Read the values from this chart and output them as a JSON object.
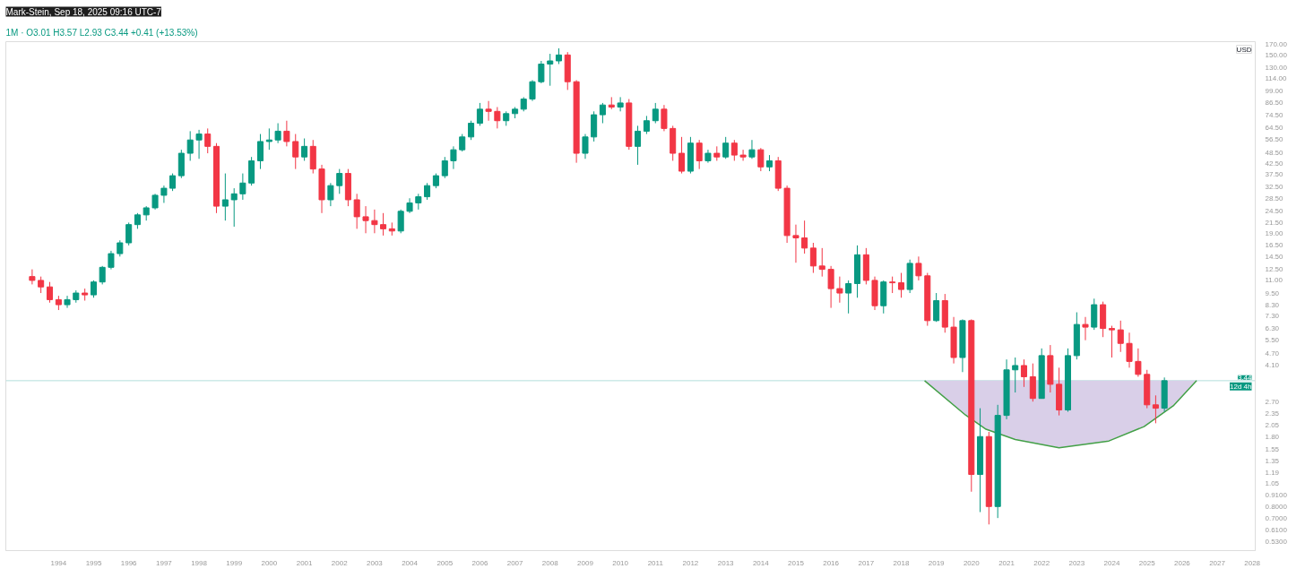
{
  "chart_data": {
    "type": "candlestick",
    "title": "Mark-Stein, Sep 18, 2025 09:16 UTC-7",
    "subtitle": "1M · O3.01 H3.57 L2.93 C3.44 +0.41 (+13.53%)",
    "ylabel": "USD",
    "x": [
      "1993-04",
      "1993-07",
      "1993-10",
      "1994-01",
      "1994-04",
      "1994-07",
      "1994-10",
      "1995-01",
      "1995-04",
      "1995-07",
      "1995-10",
      "1996-01",
      "1996-04",
      "1996-07",
      "1996-10",
      "1997-01",
      "1997-04",
      "1997-07",
      "1997-10",
      "1998-01",
      "1998-04",
      "1998-07",
      "1998-10",
      "1999-01",
      "1999-04",
      "1999-07",
      "1999-10",
      "2000-01",
      "2000-04",
      "2000-07",
      "2000-10",
      "2001-01",
      "2001-04",
      "2001-07",
      "2001-10",
      "2002-01",
      "2002-04",
      "2002-07",
      "2002-10",
      "2003-01",
      "2003-04",
      "2003-07",
      "2003-10",
      "2004-01",
      "2004-04",
      "2004-07",
      "2004-10",
      "2005-01",
      "2005-04",
      "2005-07",
      "2005-10",
      "2006-01",
      "2006-04",
      "2006-07",
      "2006-10",
      "2007-01",
      "2007-04",
      "2007-07",
      "2007-10",
      "2008-01",
      "2008-04",
      "2008-07",
      "2008-10",
      "2009-01",
      "2009-04",
      "2009-07",
      "2009-10",
      "2010-01",
      "2010-04",
      "2010-07",
      "2010-10",
      "2011-01",
      "2011-04",
      "2011-07",
      "2011-10",
      "2012-01",
      "2012-04",
      "2012-07",
      "2012-10",
      "2013-01",
      "2013-04",
      "2013-07",
      "2013-10",
      "2014-01",
      "2014-04",
      "2014-07",
      "2014-10",
      "2015-01",
      "2015-04",
      "2015-07",
      "2015-10",
      "2016-01",
      "2016-04",
      "2016-07",
      "2016-10",
      "2017-01",
      "2017-04",
      "2017-07",
      "2017-10",
      "2018-01",
      "2018-04",
      "2018-07",
      "2018-10",
      "2019-01",
      "2019-04",
      "2019-07",
      "2019-10",
      "2020-01",
      "2020-04",
      "2020-07",
      "2020-10",
      "2021-01",
      "2021-04",
      "2021-07",
      "2021-10",
      "2022-01",
      "2022-04",
      "2022-07",
      "2022-10",
      "2023-01",
      "2023-04",
      "2023-07",
      "2023-10",
      "2024-01",
      "2024-04",
      "2024-07",
      "2024-10",
      "2025-01",
      "2025-04",
      "2025-07"
    ],
    "ohlc": [
      [
        11.5,
        12.5,
        10.5,
        11.0
      ],
      [
        11.0,
        11.5,
        9.5,
        10.2
      ],
      [
        10.2,
        10.8,
        8.5,
        8.8
      ],
      [
        8.8,
        9.2,
        7.8,
        8.3
      ],
      [
        8.3,
        9.2,
        8.0,
        8.8
      ],
      [
        8.8,
        9.8,
        8.5,
        9.5
      ],
      [
        9.5,
        10.0,
        8.7,
        9.3
      ],
      [
        9.3,
        11.0,
        9.0,
        10.8
      ],
      [
        10.8,
        13.0,
        10.5,
        12.8
      ],
      [
        12.8,
        15.5,
        12.5,
        15.0
      ],
      [
        15.0,
        17.5,
        14.5,
        17.0
      ],
      [
        17.0,
        21.5,
        16.5,
        21.0
      ],
      [
        21.0,
        24.0,
        20.0,
        23.5
      ],
      [
        23.5,
        26.0,
        22.0,
        25.5
      ],
      [
        25.5,
        30.0,
        25.0,
        29.5
      ],
      [
        29.5,
        33.0,
        27.0,
        32.0
      ],
      [
        32.0,
        38.0,
        31.0,
        37.0
      ],
      [
        37.0,
        50.0,
        36.0,
        48.0
      ],
      [
        48.0,
        62.0,
        44.0,
        56.0
      ],
      [
        56.0,
        63.0,
        45.0,
        60.0
      ],
      [
        60.0,
        64.0,
        48.0,
        52.0
      ],
      [
        52.0,
        54.0,
        24.0,
        26.0
      ],
      [
        26.0,
        38.0,
        22.0,
        28.0
      ],
      [
        28.0,
        32.0,
        20.5,
        30.0
      ],
      [
        30.0,
        38.0,
        28.0,
        34.0
      ],
      [
        34.0,
        46.0,
        33.0,
        44.0
      ],
      [
        44.0,
        60.0,
        40.0,
        55.0
      ],
      [
        55.0,
        64.0,
        50.0,
        56.0
      ],
      [
        56.0,
        68.0,
        54.0,
        62.0
      ],
      [
        62.0,
        70.0,
        52.0,
        55.0
      ],
      [
        55.0,
        60.0,
        40.0,
        46.0
      ],
      [
        46.0,
        57.0,
        44.0,
        52.0
      ],
      [
        52.0,
        56.0,
        38.0,
        40.0
      ],
      [
        40.0,
        42.0,
        24.0,
        28.0
      ],
      [
        28.0,
        34.0,
        26.0,
        33.0
      ],
      [
        33.0,
        40.0,
        30.0,
        38.0
      ],
      [
        38.0,
        40.0,
        26.0,
        28.0
      ],
      [
        28.0,
        30.0,
        20.0,
        23.0
      ],
      [
        23.0,
        26.0,
        19.0,
        22.0
      ],
      [
        22.0,
        25.0,
        19.0,
        21.0
      ],
      [
        21.0,
        24.0,
        18.5,
        20.0
      ],
      [
        20.0,
        21.5,
        18.5,
        19.5
      ],
      [
        19.5,
        25.0,
        19.0,
        24.5
      ],
      [
        24.5,
        28.5,
        24.0,
        27.0
      ],
      [
        27.0,
        30.0,
        25.0,
        29.0
      ],
      [
        29.0,
        34.0,
        28.0,
        33.0
      ],
      [
        33.0,
        38.0,
        32.0,
        37.0
      ],
      [
        37.0,
        46.0,
        36.0,
        44.0
      ],
      [
        44.0,
        52.0,
        40.0,
        50.0
      ],
      [
        50.0,
        60.0,
        49.0,
        58.0
      ],
      [
        58.0,
        70.0,
        56.0,
        68.0
      ],
      [
        68.0,
        86.0,
        66.0,
        80.0
      ],
      [
        80.0,
        88.0,
        70.0,
        78.0
      ],
      [
        78.0,
        82.0,
        64.0,
        70.0
      ],
      [
        70.0,
        78.0,
        66.0,
        76.0
      ],
      [
        76.0,
        82.0,
        72.0,
        80.0
      ],
      [
        80.0,
        92.0,
        78.0,
        90.0
      ],
      [
        90.0,
        112.0,
        88.0,
        110.0
      ],
      [
        110.0,
        140.0,
        108.0,
        135.0
      ],
      [
        135.0,
        152.0,
        105.0,
        140.0
      ],
      [
        140.0,
        162.0,
        135.0,
        150.0
      ],
      [
        150.0,
        155.0,
        100.0,
        110.0
      ],
      [
        110.0,
        112.0,
        43.0,
        48.0
      ],
      [
        48.0,
        60.0,
        45.0,
        58.0
      ],
      [
        58.0,
        78.0,
        55.0,
        75.0
      ],
      [
        75.0,
        86.0,
        68.0,
        84.0
      ],
      [
        84.0,
        92.0,
        80.0,
        82.0
      ],
      [
        82.0,
        92.0,
        78.0,
        86.0
      ],
      [
        86.0,
        90.0,
        50.0,
        52.0
      ],
      [
        52.0,
        66.0,
        42.0,
        62.0
      ],
      [
        62.0,
        74.0,
        60.0,
        70.0
      ],
      [
        70.0,
        86.0,
        68.0,
        80.0
      ],
      [
        80.0,
        84.0,
        62.0,
        64.0
      ],
      [
        64.0,
        66.0,
        44.0,
        48.0
      ],
      [
        48.0,
        58.0,
        38.0,
        39.0
      ],
      [
        39.0,
        58.0,
        38.0,
        54.0
      ],
      [
        54.0,
        56.0,
        40.0,
        44.0
      ],
      [
        44.0,
        50.0,
        43.0,
        48.0
      ],
      [
        48.0,
        52.0,
        44.0,
        46.0
      ],
      [
        46.0,
        58.0,
        45.0,
        54.0
      ],
      [
        54.0,
        56.0,
        44.0,
        47.0
      ],
      [
        47.0,
        50.0,
        44.0,
        46.0
      ],
      [
        46.0,
        56.0,
        45.0,
        50.0
      ],
      [
        50.0,
        51.0,
        39.0,
        41.0
      ],
      [
        41.0,
        47.0,
        39.0,
        44.0
      ],
      [
        44.0,
        46.0,
        31.0,
        32.0
      ],
      [
        32.0,
        33.0,
        17.0,
        18.5
      ],
      [
        18.5,
        21.0,
        13.5,
        18.0
      ],
      [
        18.0,
        22.0,
        15.0,
        16.0
      ],
      [
        16.0,
        17.0,
        12.0,
        13.0
      ],
      [
        13.0,
        16.0,
        11.5,
        12.5
      ],
      [
        12.5,
        13.0,
        8.0,
        10.0
      ],
      [
        10.0,
        11.5,
        8.5,
        9.5
      ],
      [
        9.5,
        11.0,
        7.5,
        10.6
      ],
      [
        10.6,
        16.5,
        9.0,
        14.8
      ],
      [
        14.8,
        16.0,
        10.5,
        11.0
      ],
      [
        11.0,
        11.5,
        7.8,
        8.2
      ],
      [
        8.2,
        11.0,
        7.5,
        10.8
      ],
      [
        10.8,
        11.5,
        9.5,
        10.7
      ],
      [
        10.7,
        12.0,
        9.0,
        9.9
      ],
      [
        9.9,
        14.0,
        9.5,
        13.4
      ],
      [
        13.4,
        14.5,
        11.0,
        11.6
      ],
      [
        11.6,
        12.0,
        6.5,
        6.9
      ],
      [
        6.9,
        9.5,
        6.8,
        8.7
      ],
      [
        8.7,
        9.4,
        6.0,
        6.4
      ],
      [
        6.4,
        7.2,
        4.2,
        4.5
      ],
      [
        4.5,
        7.0,
        3.8,
        6.9
      ],
      [
        6.9,
        7.0,
        0.95,
        1.16
      ],
      [
        1.16,
        2.5,
        0.75,
        1.8
      ],
      [
        1.8,
        1.9,
        0.65,
        0.8
      ],
      [
        0.8,
        2.6,
        0.7,
        2.3
      ],
      [
        2.3,
        4.4,
        2.2,
        3.9
      ],
      [
        3.9,
        4.5,
        3.0,
        4.1
      ],
      [
        4.1,
        4.4,
        3.2,
        3.6
      ],
      [
        3.6,
        4.2,
        2.7,
        2.8
      ],
      [
        2.8,
        5.0,
        2.8,
        4.6
      ],
      [
        4.6,
        5.2,
        3.0,
        3.3
      ],
      [
        3.3,
        4.0,
        2.3,
        2.45
      ],
      [
        2.45,
        5.0,
        2.4,
        4.6
      ],
      [
        4.6,
        7.6,
        4.4,
        6.6
      ],
      [
        6.6,
        7.2,
        5.5,
        6.4
      ],
      [
        6.4,
        8.9,
        6.2,
        8.3
      ],
      [
        8.3,
        8.6,
        5.7,
        6.3
      ],
      [
        6.3,
        6.5,
        4.5,
        6.2
      ],
      [
        6.2,
        6.9,
        4.8,
        5.3
      ],
      [
        5.3,
        6.0,
        4.0,
        4.3
      ],
      [
        4.3,
        5.0,
        3.6,
        3.7
      ],
      [
        3.7,
        3.9,
        2.5,
        2.6
      ],
      [
        2.6,
        2.9,
        2.1,
        2.5
      ],
      [
        2.5,
        3.57,
        2.4,
        3.44
      ]
    ],
    "colors": [
      "#f23645",
      "#f23645",
      "#f23645",
      "#f23645",
      "#089981",
      "#089981",
      "#f23645",
      "#089981",
      "#089981",
      "#089981",
      "#089981",
      "#089981",
      "#089981",
      "#089981",
      "#089981",
      "#089981",
      "#089981",
      "#089981",
      "#089981",
      "#089981",
      "#f23645",
      "#f23645",
      "#089981",
      "#089981",
      "#089981",
      "#089981",
      "#089981",
      "#089981",
      "#089981",
      "#f23645",
      "#f23645",
      "#089981",
      "#f23645",
      "#f23645",
      "#089981",
      "#089981",
      "#f23645",
      "#f23645",
      "#f23645",
      "#f23645",
      "#f23645",
      "#f23645",
      "#089981",
      "#089981",
      "#089981",
      "#089981",
      "#089981",
      "#089981",
      "#089981",
      "#089981",
      "#089981",
      "#089981",
      "#f23645",
      "#f23645",
      "#089981",
      "#089981",
      "#089981",
      "#089981",
      "#089981",
      "#089981",
      "#089981",
      "#f23645",
      "#f23645",
      "#089981",
      "#089981",
      "#089981",
      "#f23645",
      "#089981",
      "#f23645",
      "#089981",
      "#089981",
      "#089981",
      "#f23645",
      "#f23645",
      "#f23645",
      "#089981",
      "#f23645",
      "#089981",
      "#f23645",
      "#089981",
      "#f23645",
      "#f23645",
      "#089981",
      "#f23645",
      "#089981",
      "#f23645",
      "#f23645",
      "#f23645",
      "#f23645",
      "#f23645",
      "#f23645",
      "#f23645",
      "#f23645",
      "#089981",
      "#089981",
      "#f23645",
      "#f23645",
      "#089981",
      "#f23645",
      "#f23645",
      "#089981",
      "#f23645",
      "#f23645",
      "#089981",
      "#f23645",
      "#f23645",
      "#089981",
      "#f23645",
      "#089981",
      "#f23645",
      "#089981",
      "#089981",
      "#089981",
      "#f23645",
      "#f23645",
      "#089981",
      "#f23645",
      "#f23645",
      "#089981",
      "#089981",
      "#f23645",
      "#089981",
      "#f23645",
      "#f23645",
      "#f23645",
      "#f23645",
      "#f23645",
      "#f23645",
      "#f23645",
      "#089981"
    ],
    "series": [
      {
        "type": "line",
        "color": "#43a047",
        "x": [
          "2018-09",
          "2019-11",
          "2020-06",
          "2021-04",
          "2022-07",
          "2023-12",
          "2024-12",
          "2025-10",
          "2026-06"
        ],
        "values": [
          3.44,
          2.31,
          1.96,
          1.74,
          1.58,
          1.71,
          2.02,
          2.57,
          3.44
        ],
        "lower": [
          3.44,
          2.31,
          1.96,
          1.74,
          1.58,
          1.71,
          2.02,
          2.57,
          3.44
        ],
        "upper": [
          3.44,
          3.44,
          3.44,
          3.44,
          3.44,
          3.44,
          3.44,
          3.44,
          3.44
        ]
      }
    ],
    "ref_lines": [
      {
        "axis": "y",
        "value": 3.44,
        "label": "3.44",
        "color": "#b2dfdb"
      }
    ],
    "annotations": [
      "12d 4h"
    ],
    "log": "y",
    "grid": false,
    "xlim": [
      "1992-07",
      "2028-02"
    ],
    "xticks": [
      "1994",
      "1995",
      "1996",
      "1997",
      "1998",
      "1999",
      "2000",
      "2001",
      "2002",
      "2003",
      "2004",
      "2005",
      "2006",
      "2007",
      "2008",
      "2009",
      "2010",
      "2011",
      "2012",
      "2013",
      "2014",
      "2015",
      "2016",
      "2017",
      "2018",
      "2019",
      "2020",
      "2021",
      "2022",
      "2023",
      "2024",
      "2025",
      "2026",
      "2027",
      "2028"
    ],
    "ylim": [
      0.48,
      175
    ],
    "yticks": [
      {
        "value": 170,
        "label": "170.00"
      },
      {
        "value": 150,
        "label": "150.00"
      },
      {
        "value": 130,
        "label": "130.00"
      },
      {
        "value": 114,
        "label": "114.00"
      },
      {
        "value": 99,
        "label": "99.00"
      },
      {
        "value": 86.5,
        "label": "86.50"
      },
      {
        "value": 74.5,
        "label": "74.50"
      },
      {
        "value": 64.5,
        "label": "64.50"
      },
      {
        "value": 56.5,
        "label": "56.50"
      },
      {
        "value": 48.5,
        "label": "48.50"
      },
      {
        "value": 42.5,
        "label": "42.50"
      },
      {
        "value": 37.5,
        "label": "37.50"
      },
      {
        "value": 32.5,
        "label": "32.50"
      },
      {
        "value": 28.5,
        "label": "28.50"
      },
      {
        "value": 24.5,
        "label": "24.50"
      },
      {
        "value": 21.5,
        "label": "21.50"
      },
      {
        "value": 19,
        "label": "19.00"
      },
      {
        "value": 16.5,
        "label": "16.50"
      },
      {
        "value": 14.5,
        "label": "14.50"
      },
      {
        "value": 12.5,
        "label": "12.50"
      },
      {
        "value": 11,
        "label": "11.00"
      },
      {
        "value": 9.5,
        "label": "9.50"
      },
      {
        "value": 8.3,
        "label": "8.30"
      },
      {
        "value": 7.3,
        "label": "7.30"
      },
      {
        "value": 6.3,
        "label": "6.30"
      },
      {
        "value": 5.5,
        "label": "5.50"
      },
      {
        "value": 4.7,
        "label": "4.70"
      },
      {
        "value": 4.1,
        "label": "4.10"
      },
      {
        "value": 2.7,
        "label": "2.70"
      },
      {
        "value": 2.35,
        "label": "2.35"
      },
      {
        "value": 2.05,
        "label": "2.05"
      },
      {
        "value": 1.8,
        "label": "1.80"
      },
      {
        "value": 1.55,
        "label": "1.55"
      },
      {
        "value": 1.35,
        "label": "1.35"
      },
      {
        "value": 1.19,
        "label": "1.19"
      },
      {
        "value": 1.05,
        "label": "1.05"
      },
      {
        "value": 0.91,
        "label": "0.9100"
      },
      {
        "value": 0.8,
        "label": "0.8000"
      },
      {
        "value": 0.7,
        "label": "0.7000"
      },
      {
        "value": 0.61,
        "label": "0.6100"
      },
      {
        "value": 0.53,
        "label": "0.5300"
      }
    ]
  }
}
